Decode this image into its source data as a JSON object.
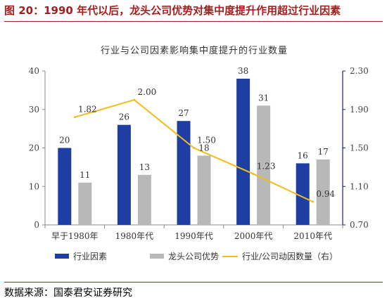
{
  "figure": {
    "title": "图 20：1990 年代以后，龙头公司优势对集中度提升作用超过行业因素",
    "source": "数据来源：国泰君安证券研究"
  },
  "chart_data": {
    "type": "bar",
    "title": "行业与公司因素影响集中度提升的行业数量",
    "categories": [
      "早于1980年",
      "1980年代",
      "1990年代",
      "2000年代",
      "2010年代"
    ],
    "series": [
      {
        "name": "行业因素",
        "type": "bar",
        "axis": "left",
        "color": "#1f3ea3",
        "values": [
          20,
          26,
          27,
          38,
          16
        ]
      },
      {
        "name": "龙头公司优势",
        "type": "bar",
        "axis": "left",
        "color": "#b8b8b8",
        "values": [
          11,
          13,
          18,
          31,
          17
        ]
      },
      {
        "name": "行业/公司动因数量（右）",
        "type": "line",
        "axis": "right",
        "color": "#f2bd1a",
        "values": [
          1.82,
          2.0,
          1.5,
          1.23,
          0.94
        ]
      }
    ],
    "y_left": {
      "min": 0,
      "max": 40,
      "ticks": [
        "0",
        "10",
        "20",
        "30",
        "40"
      ]
    },
    "y_right": {
      "min": 0.7,
      "max": 2.3,
      "ticks": [
        "0.70",
        "1.10",
        "1.50",
        "1.90",
        "2.30"
      ]
    },
    "grid": false,
    "legend_position": "bottom"
  }
}
